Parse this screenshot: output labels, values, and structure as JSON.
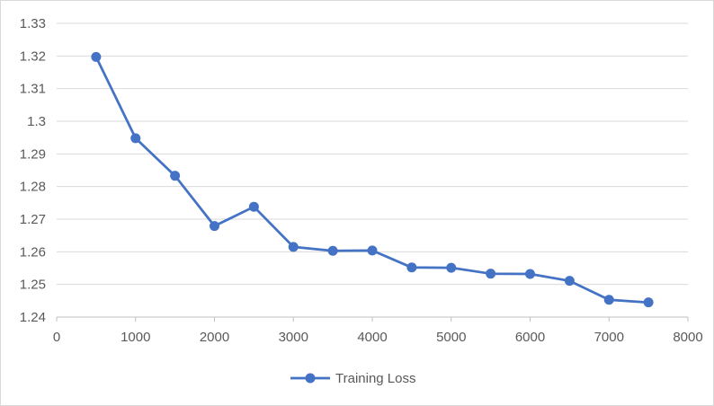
{
  "chart_data": {
    "type": "line",
    "title": "",
    "xlabel": "",
    "ylabel": "",
    "xlim": [
      0,
      8000
    ],
    "ylim": [
      1.24,
      1.33
    ],
    "x_ticks": [
      0,
      1000,
      2000,
      3000,
      4000,
      5000,
      6000,
      7000,
      8000
    ],
    "x_tick_labels": [
      "0",
      "1000",
      "2000",
      "3000",
      "4000",
      "5000",
      "6000",
      "7000",
      "8000"
    ],
    "y_ticks": [
      1.24,
      1.25,
      1.26,
      1.27,
      1.28,
      1.29,
      1.3,
      1.31,
      1.32,
      1.33
    ],
    "y_tick_labels": [
      "1.24",
      "1.25",
      "1.26",
      "1.27",
      "1.28",
      "1.29",
      "1.3",
      "1.31",
      "1.32",
      "1.33"
    ],
    "grid": "horizontal",
    "legend_position": "bottom",
    "series": [
      {
        "name": "Training Loss",
        "color": "#4472c4",
        "x": [
          500,
          1000,
          1500,
          2000,
          2500,
          3000,
          3500,
          4000,
          4500,
          5000,
          5500,
          6000,
          6500,
          7000,
          7500
        ],
        "y": [
          1.3197,
          1.2948,
          1.2833,
          1.2679,
          1.2738,
          1.2615,
          1.2603,
          1.2604,
          1.2552,
          1.2551,
          1.2533,
          1.2532,
          1.2511,
          1.2453,
          1.2445
        ]
      }
    ]
  }
}
